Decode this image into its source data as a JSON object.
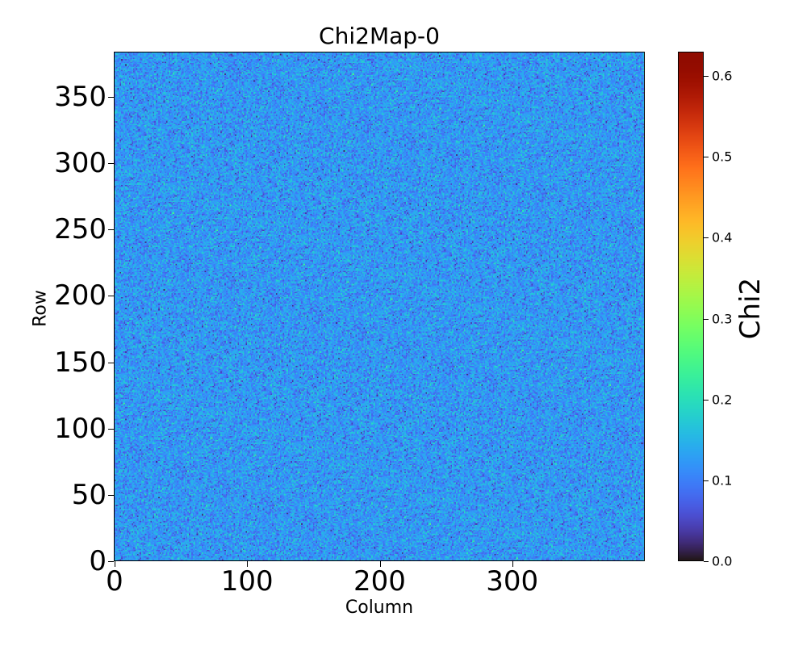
{
  "chart_data": {
    "type": "heatmap",
    "title": "Chi2Map-0",
    "xlabel": "Column",
    "ylabel": "Row",
    "colorbar_label": "Chi2",
    "colormap": "turbo",
    "xlim": [
      0,
      400
    ],
    "ylim": [
      0,
      384
    ],
    "clim": [
      0,
      0.63
    ],
    "xticks": [
      0,
      100,
      200,
      300
    ],
    "xtick_labels": [
      "0",
      "100",
      "200",
      "300"
    ],
    "yticks": [
      0,
      50,
      100,
      150,
      200,
      250,
      300,
      350
    ],
    "ytick_labels": [
      "0",
      "50",
      "100",
      "150",
      "200",
      "250",
      "300",
      "350"
    ],
    "cticks": [
      0.0,
      0.1,
      0.2,
      0.3,
      0.4,
      0.5,
      0.6
    ],
    "ctick_labels": [
      "0.0",
      "0.1",
      "0.2",
      "0.3",
      "0.4",
      "0.5",
      "0.6"
    ],
    "grid_shape": [
      384,
      400
    ],
    "value_distribution": {
      "mean": 0.12,
      "std": 0.03,
      "min": 0.0,
      "max": 0.63
    }
  }
}
